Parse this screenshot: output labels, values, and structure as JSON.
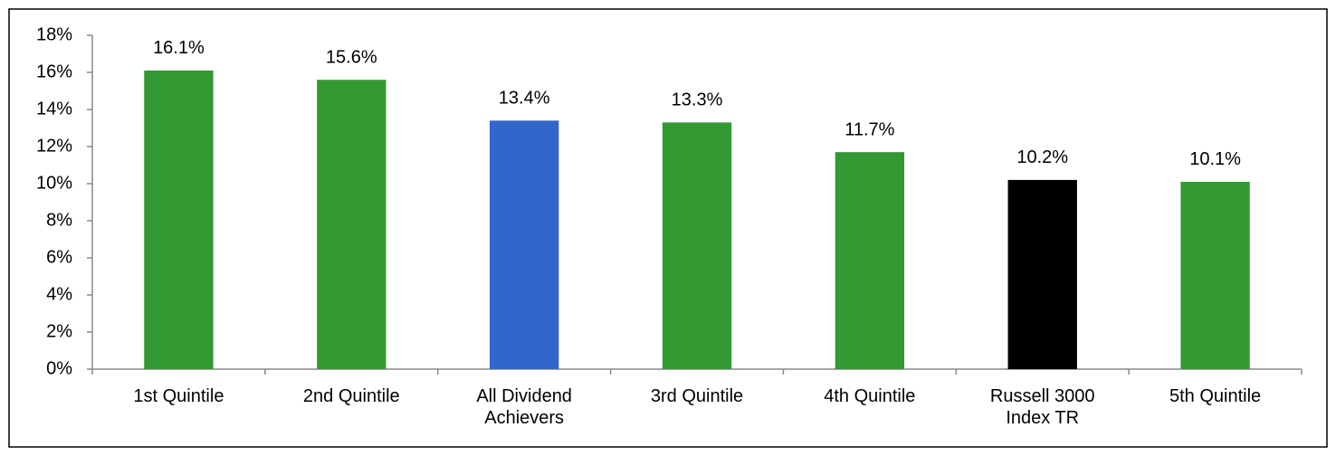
{
  "chart_data": {
    "type": "bar",
    "categories": [
      "1st Quintile",
      "2nd Quintile",
      "All Dividend Achievers",
      "3rd Quintile",
      "4th Quintile",
      "Russell 3000 Index TR",
      "5th Quintile"
    ],
    "values": [
      16.1,
      15.6,
      13.4,
      13.3,
      11.7,
      10.2,
      10.1
    ],
    "value_labels": [
      "16.1%",
      "15.6%",
      "13.4%",
      "13.3%",
      "11.7%",
      "10.2%",
      "10.1%"
    ],
    "colors": [
      "#339933",
      "#339933",
      "#3366cc",
      "#339933",
      "#339933",
      "#000000",
      "#339933"
    ],
    "ylim": [
      0,
      18
    ],
    "yticks": [
      {
        "value": 0,
        "label": "0%"
      },
      {
        "value": 2,
        "label": "2%"
      },
      {
        "value": 4,
        "label": "4%"
      },
      {
        "value": 6,
        "label": "6%"
      },
      {
        "value": 8,
        "label": "8%"
      },
      {
        "value": 10,
        "label": "10%"
      },
      {
        "value": 12,
        "label": "12%"
      },
      {
        "value": 14,
        "label": "14%"
      },
      {
        "value": 16,
        "label": "16%"
      },
      {
        "value": 18,
        "label": "18%"
      }
    ],
    "grid": false
  }
}
